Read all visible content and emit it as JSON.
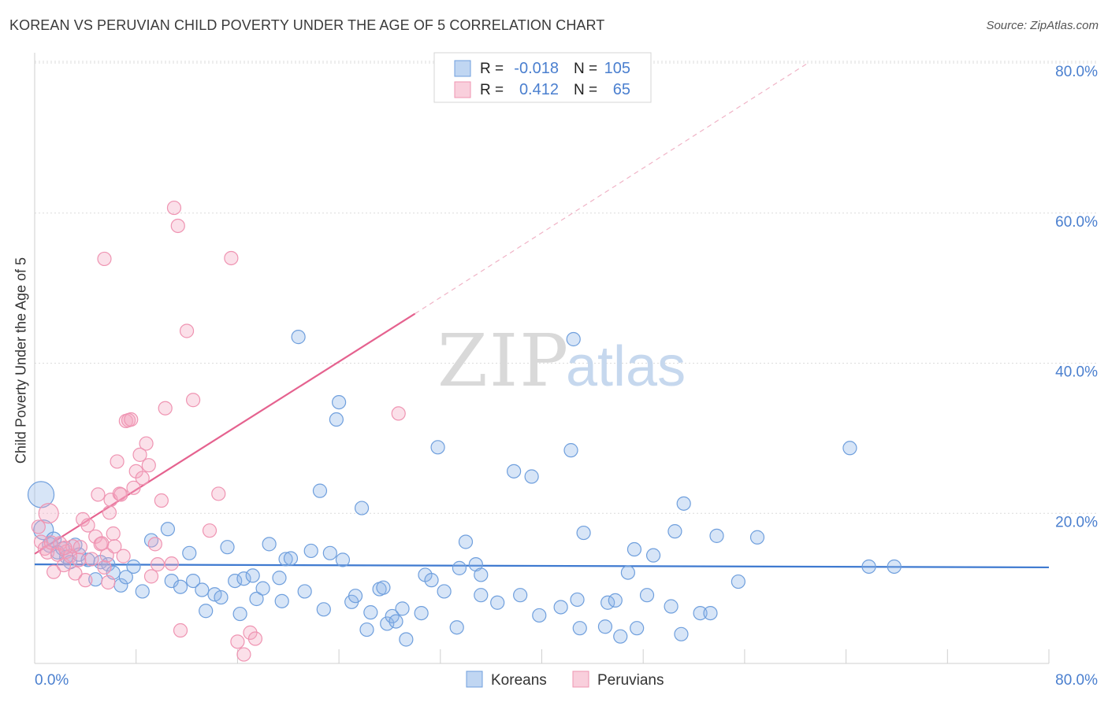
{
  "header": {
    "title": "KOREAN VS PERUVIAN CHILD POVERTY UNDER THE AGE OF 5 CORRELATION CHART",
    "source": "Source: ZipAtlas.com"
  },
  "watermark": {
    "zip": "ZIP",
    "atlas": "atlas"
  },
  "legend_top": [
    {
      "r_label": "R =",
      "r_value": "-0.018",
      "n_label": "N =",
      "n_value": "105",
      "color": "#8cb4e8"
    },
    {
      "r_label": "R =",
      "r_value": "0.412",
      "n_label": "N =",
      "n_value": "65",
      "color": "#f4a7bf"
    }
  ],
  "legend_bottom": [
    {
      "label": "Koreans",
      "color": "#8cb4e8"
    },
    {
      "label": "Peruvians",
      "color": "#f4a7bf"
    }
  ],
  "colors": {
    "blue": "#3f7ad0",
    "pink": "#e5628f",
    "axis_text": "#4a7fcf"
  },
  "chart_data": {
    "type": "scatter",
    "title": "KOREAN VS PERUVIAN CHILD POVERTY UNDER THE AGE OF 5 CORRELATION CHART",
    "xlabel": "",
    "ylabel": "Child Poverty Under the Age of 5",
    "xlim": [
      0,
      80
    ],
    "ylim": [
      0,
      80
    ],
    "x_tick_labels": [
      "0.0%",
      "80.0%"
    ],
    "y_tick_labels": [
      "20.0%",
      "40.0%",
      "60.0%",
      "80.0%"
    ],
    "y_ticks": [
      20,
      40,
      60,
      80
    ],
    "grid": true,
    "legend_position": "top-center",
    "series": [
      {
        "name": "Koreans",
        "color": "#8cb4e8",
        "trend": {
          "x": [
            0,
            80
          ],
          "y": [
            13.2,
            12.8
          ],
          "style": "solid"
        },
        "points": [
          [
            0.5,
            22.5
          ],
          [
            0.7,
            17.8
          ],
          [
            1.2,
            15.8
          ],
          [
            1.5,
            16.5
          ],
          [
            1.8,
            14.8
          ],
          [
            2.2,
            15.3
          ],
          [
            2.5,
            14.2
          ],
          [
            2.8,
            13.5
          ],
          [
            3.2,
            15.8
          ],
          [
            3.5,
            14.5
          ],
          [
            4.2,
            13.8
          ],
          [
            4.8,
            11.2
          ],
          [
            5.2,
            13.5
          ],
          [
            5.8,
            13.2
          ],
          [
            6.2,
            12.1
          ],
          [
            6.8,
            10.4
          ],
          [
            7.2,
            11.5
          ],
          [
            7.8,
            12.9
          ],
          [
            8.5,
            9.6
          ],
          [
            9.2,
            16.4
          ],
          [
            10.5,
            17.9
          ],
          [
            10.8,
            11.0
          ],
          [
            11.5,
            10.2
          ],
          [
            12.2,
            14.7
          ],
          [
            12.5,
            11.0
          ],
          [
            13.2,
            9.8
          ],
          [
            13.5,
            7.0
          ],
          [
            14.2,
            9.2
          ],
          [
            14.7,
            8.8
          ],
          [
            15.2,
            15.5
          ],
          [
            15.8,
            11.0
          ],
          [
            16.2,
            6.6
          ],
          [
            16.5,
            11.3
          ],
          [
            17.2,
            11.7
          ],
          [
            17.5,
            8.6
          ],
          [
            18.0,
            10.0
          ],
          [
            18.5,
            15.9
          ],
          [
            19.3,
            11.4
          ],
          [
            19.5,
            8.3
          ],
          [
            19.8,
            13.9
          ],
          [
            20.2,
            14.0
          ],
          [
            20.8,
            43.5
          ],
          [
            21.3,
            9.6
          ],
          [
            21.8,
            15.0
          ],
          [
            22.5,
            23.0
          ],
          [
            22.8,
            7.2
          ],
          [
            23.3,
            14.7
          ],
          [
            23.8,
            32.5
          ],
          [
            24.0,
            34.8
          ],
          [
            24.3,
            13.8
          ],
          [
            25.0,
            8.2
          ],
          [
            25.3,
            9.0
          ],
          [
            25.8,
            20.7
          ],
          [
            26.2,
            4.5
          ],
          [
            26.5,
            6.8
          ],
          [
            27.2,
            9.9
          ],
          [
            27.5,
            10.1
          ],
          [
            27.8,
            5.3
          ],
          [
            28.2,
            6.3
          ],
          [
            28.5,
            5.6
          ],
          [
            29.0,
            7.3
          ],
          [
            29.3,
            3.2
          ],
          [
            30.5,
            6.7
          ],
          [
            30.8,
            11.8
          ],
          [
            31.3,
            11.1
          ],
          [
            31.8,
            28.8
          ],
          [
            32.3,
            9.6
          ],
          [
            33.3,
            4.8
          ],
          [
            33.5,
            12.7
          ],
          [
            34.0,
            16.2
          ],
          [
            34.8,
            13.2
          ],
          [
            35.2,
            9.1
          ],
          [
            35.2,
            11.8
          ],
          [
            36.5,
            8.1
          ],
          [
            37.8,
            25.6
          ],
          [
            38.3,
            9.1
          ],
          [
            39.2,
            24.9
          ],
          [
            39.8,
            6.4
          ],
          [
            41.5,
            7.5
          ],
          [
            42.3,
            28.4
          ],
          [
            42.5,
            43.2
          ],
          [
            42.8,
            8.5
          ],
          [
            43.0,
            4.7
          ],
          [
            43.3,
            17.4
          ],
          [
            45.0,
            4.9
          ],
          [
            45.2,
            8.1
          ],
          [
            45.8,
            8.4
          ],
          [
            46.2,
            3.6
          ],
          [
            46.8,
            12.1
          ],
          [
            47.3,
            15.2
          ],
          [
            47.5,
            4.7
          ],
          [
            48.3,
            9.1
          ],
          [
            48.8,
            14.4
          ],
          [
            50.2,
            7.6
          ],
          [
            50.5,
            17.6
          ],
          [
            51.0,
            3.9
          ],
          [
            51.2,
            21.3
          ],
          [
            52.5,
            6.7
          ],
          [
            53.3,
            6.7
          ],
          [
            53.8,
            17.0
          ],
          [
            55.5,
            10.9
          ],
          [
            57.0,
            16.8
          ],
          [
            64.3,
            28.7
          ],
          [
            65.8,
            12.9
          ],
          [
            67.8,
            12.9
          ]
        ],
        "sizes": [
          30,
          22,
          16,
          16,
          14,
          14,
          14,
          14,
          14,
          14,
          14,
          14,
          14,
          14,
          14,
          14,
          14,
          14,
          14,
          14,
          14,
          14,
          14,
          14,
          14,
          14,
          14,
          14,
          14,
          14,
          14,
          14,
          14,
          14,
          14,
          14,
          14,
          14,
          14,
          14,
          14,
          14,
          14,
          14,
          14,
          14,
          14,
          14,
          14,
          14,
          14,
          14,
          14,
          14,
          14,
          14,
          14,
          14,
          14,
          14,
          14,
          14,
          14,
          14,
          14,
          14,
          14,
          14,
          14,
          14,
          14,
          14,
          14,
          14,
          14,
          14,
          14,
          14,
          14,
          14,
          14,
          14,
          14,
          14,
          14,
          14,
          14,
          14,
          14,
          14,
          14,
          14,
          14,
          14,
          14,
          14,
          14,
          14,
          14,
          14,
          14,
          14,
          14,
          14,
          14
        ]
      },
      {
        "name": "Peruvians",
        "color": "#f4a7bf",
        "trend": {
          "x": [
            0,
            30
          ],
          "y": [
            14.6,
            46.6
          ],
          "style": "solid",
          "extension": {
            "x": [
              30,
              61
            ],
            "y": [
              46.6,
              80
            ],
            "style": "dashed"
          }
        },
        "points": [
          [
            0.3,
            18.2
          ],
          [
            0.5,
            16.2
          ],
          [
            0.8,
            15.3
          ],
          [
            1.0,
            14.8
          ],
          [
            1.3,
            16.1
          ],
          [
            1.5,
            12.2
          ],
          [
            1.8,
            14.5
          ],
          [
            2.0,
            16.0
          ],
          [
            2.3,
            13.1
          ],
          [
            2.5,
            14.9
          ],
          [
            2.8,
            14.3
          ],
          [
            3.0,
            15.6
          ],
          [
            3.2,
            12.0
          ],
          [
            3.5,
            13.8
          ],
          [
            3.6,
            15.5
          ],
          [
            3.8,
            19.2
          ],
          [
            4.0,
            11.1
          ],
          [
            4.2,
            18.4
          ],
          [
            4.5,
            13.9
          ],
          [
            4.8,
            16.9
          ],
          [
            5.0,
            22.5
          ],
          [
            5.2,
            15.9
          ],
          [
            5.3,
            16.0
          ],
          [
            5.5,
            12.8
          ],
          [
            5.7,
            14.4
          ],
          [
            5.8,
            10.8
          ],
          [
            5.9,
            20.1
          ],
          [
            6.0,
            21.8
          ],
          [
            6.2,
            17.3
          ],
          [
            6.3,
            15.6
          ],
          [
            6.5,
            26.9
          ],
          [
            6.7,
            22.6
          ],
          [
            6.8,
            22.5
          ],
          [
            7.0,
            14.3
          ],
          [
            7.2,
            32.3
          ],
          [
            7.4,
            32.4
          ],
          [
            7.6,
            32.5
          ],
          [
            7.8,
            23.4
          ],
          [
            8.0,
            25.6
          ],
          [
            8.3,
            27.8
          ],
          [
            8.5,
            24.7
          ],
          [
            8.8,
            29.3
          ],
          [
            9.0,
            26.4
          ],
          [
            9.2,
            11.6
          ],
          [
            9.5,
            15.9
          ],
          [
            9.7,
            13.2
          ],
          [
            10.0,
            21.7
          ],
          [
            10.3,
            34.0
          ],
          [
            10.8,
            13.3
          ],
          [
            11.0,
            60.7
          ],
          [
            11.3,
            58.3
          ],
          [
            11.5,
            4.4
          ],
          [
            12.0,
            44.3
          ],
          [
            12.5,
            35.1
          ],
          [
            13.8,
            17.7
          ],
          [
            14.5,
            22.6
          ],
          [
            15.5,
            54.0
          ],
          [
            16.0,
            2.9
          ],
          [
            16.5,
            1.2
          ],
          [
            17.0,
            4.1
          ],
          [
            17.4,
            3.3
          ],
          [
            28.7,
            33.3
          ],
          [
            5.5,
            53.9
          ],
          [
            2.4,
            15.4
          ],
          [
            1.1,
            20.0
          ]
        ],
        "sizes": [
          14,
          14,
          14,
          14,
          14,
          14,
          14,
          14,
          14,
          14,
          14,
          14,
          14,
          14,
          14,
          14,
          14,
          14,
          14,
          14,
          14,
          14,
          14,
          14,
          14,
          14,
          14,
          14,
          14,
          14,
          14,
          14,
          14,
          14,
          14,
          14,
          14,
          14,
          14,
          14,
          14,
          14,
          14,
          14,
          14,
          14,
          14,
          14,
          14,
          14,
          14,
          14,
          14,
          14,
          14,
          14,
          14,
          14,
          14,
          14,
          14,
          14,
          14,
          14,
          22
        ]
      }
    ]
  }
}
